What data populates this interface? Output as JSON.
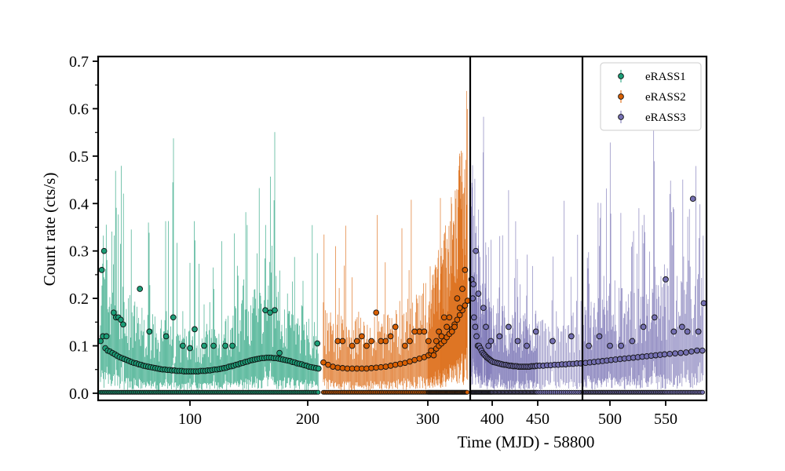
{
  "chart_data": {
    "type": "scatter",
    "title": "",
    "xlabel": "Time (MJD) - 58800",
    "ylabel": "Count rate (cts/s)",
    "xlim": [
      23,
      580
    ],
    "ylim": [
      -0.015,
      0.71
    ],
    "xticks": [
      "100",
      "200",
      "300",
      "400",
      "450",
      "500",
      "550"
    ],
    "yticks": [
      "0.0",
      "0.1",
      "0.2",
      "0.3",
      "0.4",
      "0.5",
      "0.6",
      "0.7"
    ],
    "vertical_lines": [
      365,
      474
    ],
    "legend_position": "top-right",
    "x_scale": "piecewise-linear",
    "series": [
      {
        "name": "eRASS1",
        "color": "#1b9e77",
        "x": [
          25,
          27,
          29,
          31,
          33,
          35,
          37,
          39,
          41,
          43,
          45,
          47,
          49,
          51,
          53,
          55,
          57,
          59,
          61,
          63,
          65,
          67,
          69,
          71,
          73,
          75,
          77,
          79,
          81,
          83,
          85,
          87,
          89,
          91,
          93,
          95,
          97,
          99,
          101,
          103,
          105,
          107,
          109,
          111,
          113,
          115,
          117,
          119,
          121,
          123,
          125,
          127,
          129,
          131,
          133,
          135,
          137,
          139,
          141,
          143,
          145,
          147,
          149,
          151,
          153,
          155,
          157,
          159,
          161,
          163,
          165,
          167,
          169,
          171,
          173,
          175,
          177,
          179,
          181,
          183,
          185,
          187,
          189,
          191,
          193,
          195,
          197,
          199,
          201,
          203,
          205,
          207,
          209,
          26,
          28,
          30,
          36,
          38,
          40,
          42,
          44,
          58,
          66,
          80,
          86,
          94,
          100,
          104,
          112,
          120,
          130,
          136,
          164,
          168,
          172,
          176,
          208
        ],
        "y": [
          0.11,
          0.12,
          0.095,
          0.09,
          0.088,
          0.085,
          0.082,
          0.079,
          0.076,
          0.074,
          0.072,
          0.07,
          0.068,
          0.066,
          0.064,
          0.063,
          0.061,
          0.06,
          0.058,
          0.057,
          0.056,
          0.055,
          0.054,
          0.053,
          0.052,
          0.051,
          0.05,
          0.05,
          0.049,
          0.049,
          0.048,
          0.048,
          0.047,
          0.047,
          0.047,
          0.046,
          0.046,
          0.046,
          0.046,
          0.046,
          0.046,
          0.046,
          0.047,
          0.047,
          0.047,
          0.048,
          0.048,
          0.049,
          0.05,
          0.05,
          0.051,
          0.052,
          0.053,
          0.054,
          0.056,
          0.057,
          0.058,
          0.06,
          0.061,
          0.063,
          0.064,
          0.066,
          0.067,
          0.069,
          0.07,
          0.071,
          0.072,
          0.073,
          0.074,
          0.074,
          0.075,
          0.075,
          0.075,
          0.074,
          0.074,
          0.073,
          0.072,
          0.071,
          0.07,
          0.069,
          0.068,
          0.066,
          0.065,
          0.063,
          0.062,
          0.061,
          0.059,
          0.058,
          0.056,
          0.055,
          0.054,
          0.053,
          0.052,
          0.26,
          0.3,
          0.12,
          0.17,
          0.16,
          0.16,
          0.155,
          0.145,
          0.22,
          0.13,
          0.12,
          0.16,
          0.1,
          0.095,
          0.135,
          0.1,
          0.1,
          0.1,
          0.1,
          0.175,
          0.17,
          0.175,
          0.085,
          0.105
        ]
      },
      {
        "name": "eRASS2",
        "color": "#d95f02",
        "x": [
          213,
          217,
          221,
          225,
          229,
          233,
          237,
          241,
          245,
          249,
          253,
          257,
          261,
          265,
          269,
          273,
          277,
          281,
          285,
          289,
          293,
          297,
          301,
          305,
          309,
          313,
          317,
          321,
          325,
          329,
          333,
          337,
          341,
          345,
          349,
          353,
          357,
          361,
          225,
          229,
          237,
          241,
          249,
          253,
          261,
          265,
          273,
          281,
          285,
          293,
          297,
          301,
          309,
          313,
          317,
          321,
          325,
          329,
          333,
          337,
          341,
          345,
          349,
          353,
          357,
          245,
          257,
          269,
          289,
          305
        ],
        "y": [
          0.065,
          0.06,
          0.056,
          0.054,
          0.053,
          0.052,
          0.052,
          0.052,
          0.052,
          0.052,
          0.053,
          0.054,
          0.055,
          0.056,
          0.058,
          0.06,
          0.062,
          0.064,
          0.067,
          0.07,
          0.073,
          0.076,
          0.08,
          0.084,
          0.089,
          0.094,
          0.1,
          0.105,
          0.11,
          0.118,
          0.125,
          0.135,
          0.145,
          0.155,
          0.165,
          0.175,
          0.185,
          0.195,
          0.11,
          0.11,
          0.1,
          0.11,
          0.1,
          0.11,
          0.11,
          0.11,
          0.14,
          0.1,
          0.11,
          0.13,
          0.13,
          0.11,
          0.08,
          0.11,
          0.13,
          0.12,
          0.16,
          0.14,
          0.16,
          0.13,
          0.14,
          0.2,
          0.18,
          0.22,
          0.26,
          0.12,
          0.17,
          0.12,
          0.13,
          0.09
        ]
      },
      {
        "name": "eRASS3",
        "color": "#7570b3",
        "x": [
          367,
          369,
          371,
          373,
          375,
          377,
          379,
          381,
          383,
          385,
          387,
          389,
          391,
          393,
          395,
          397,
          399,
          401,
          403,
          405,
          407,
          409,
          411,
          413,
          415,
          417,
          419,
          421,
          423,
          425,
          427,
          429,
          431,
          433,
          435,
          437,
          439,
          441,
          443,
          445,
          447,
          449,
          451,
          453,
          455,
          457,
          459,
          461,
          463,
          465,
          467,
          469,
          471,
          473,
          477,
          481,
          485,
          489,
          493,
          497,
          501,
          505,
          509,
          513,
          517,
          521,
          525,
          529,
          533,
          537,
          541,
          545,
          549,
          553,
          557,
          561,
          565,
          569,
          573,
          577,
          370,
          374,
          378,
          386,
          390,
          394,
          398,
          408,
          418,
          428,
          438,
          448,
          458,
          468,
          480,
          490,
          500,
          510,
          520,
          530,
          540,
          550,
          556,
          562,
          566,
          570,
          574,
          578
        ],
        "y": [
          0.24,
          0.2,
          0.16,
          0.14,
          0.12,
          0.1,
          0.1,
          0.095,
          0.09,
          0.085,
          0.082,
          0.079,
          0.076,
          0.074,
          0.072,
          0.07,
          0.068,
          0.066,
          0.065,
          0.064,
          0.063,
          0.062,
          0.061,
          0.06,
          0.06,
          0.059,
          0.058,
          0.058,
          0.057,
          0.057,
          0.057,
          0.056,
          0.056,
          0.056,
          0.056,
          0.056,
          0.056,
          0.056,
          0.057,
          0.057,
          0.057,
          0.058,
          0.058,
          0.058,
          0.059,
          0.059,
          0.06,
          0.06,
          0.061,
          0.061,
          0.062,
          0.062,
          0.063,
          0.063,
          0.064,
          0.065,
          0.066,
          0.067,
          0.068,
          0.069,
          0.07,
          0.071,
          0.072,
          0.073,
          0.074,
          0.075,
          0.076,
          0.077,
          0.078,
          0.079,
          0.08,
          0.081,
          0.082,
          0.083,
          0.084,
          0.085,
          0.086,
          0.088,
          0.09,
          0.09,
          0.23,
          0.3,
          0.21,
          0.18,
          0.14,
          0.1,
          0.11,
          0.12,
          0.14,
          0.11,
          0.1,
          0.13,
          0.11,
          0.12,
          0.1,
          0.12,
          0.1,
          0.1,
          0.11,
          0.14,
          0.16,
          0.24,
          0.13,
          0.14,
          0.13,
          0.41,
          0.13,
          0.19
        ]
      }
    ]
  }
}
